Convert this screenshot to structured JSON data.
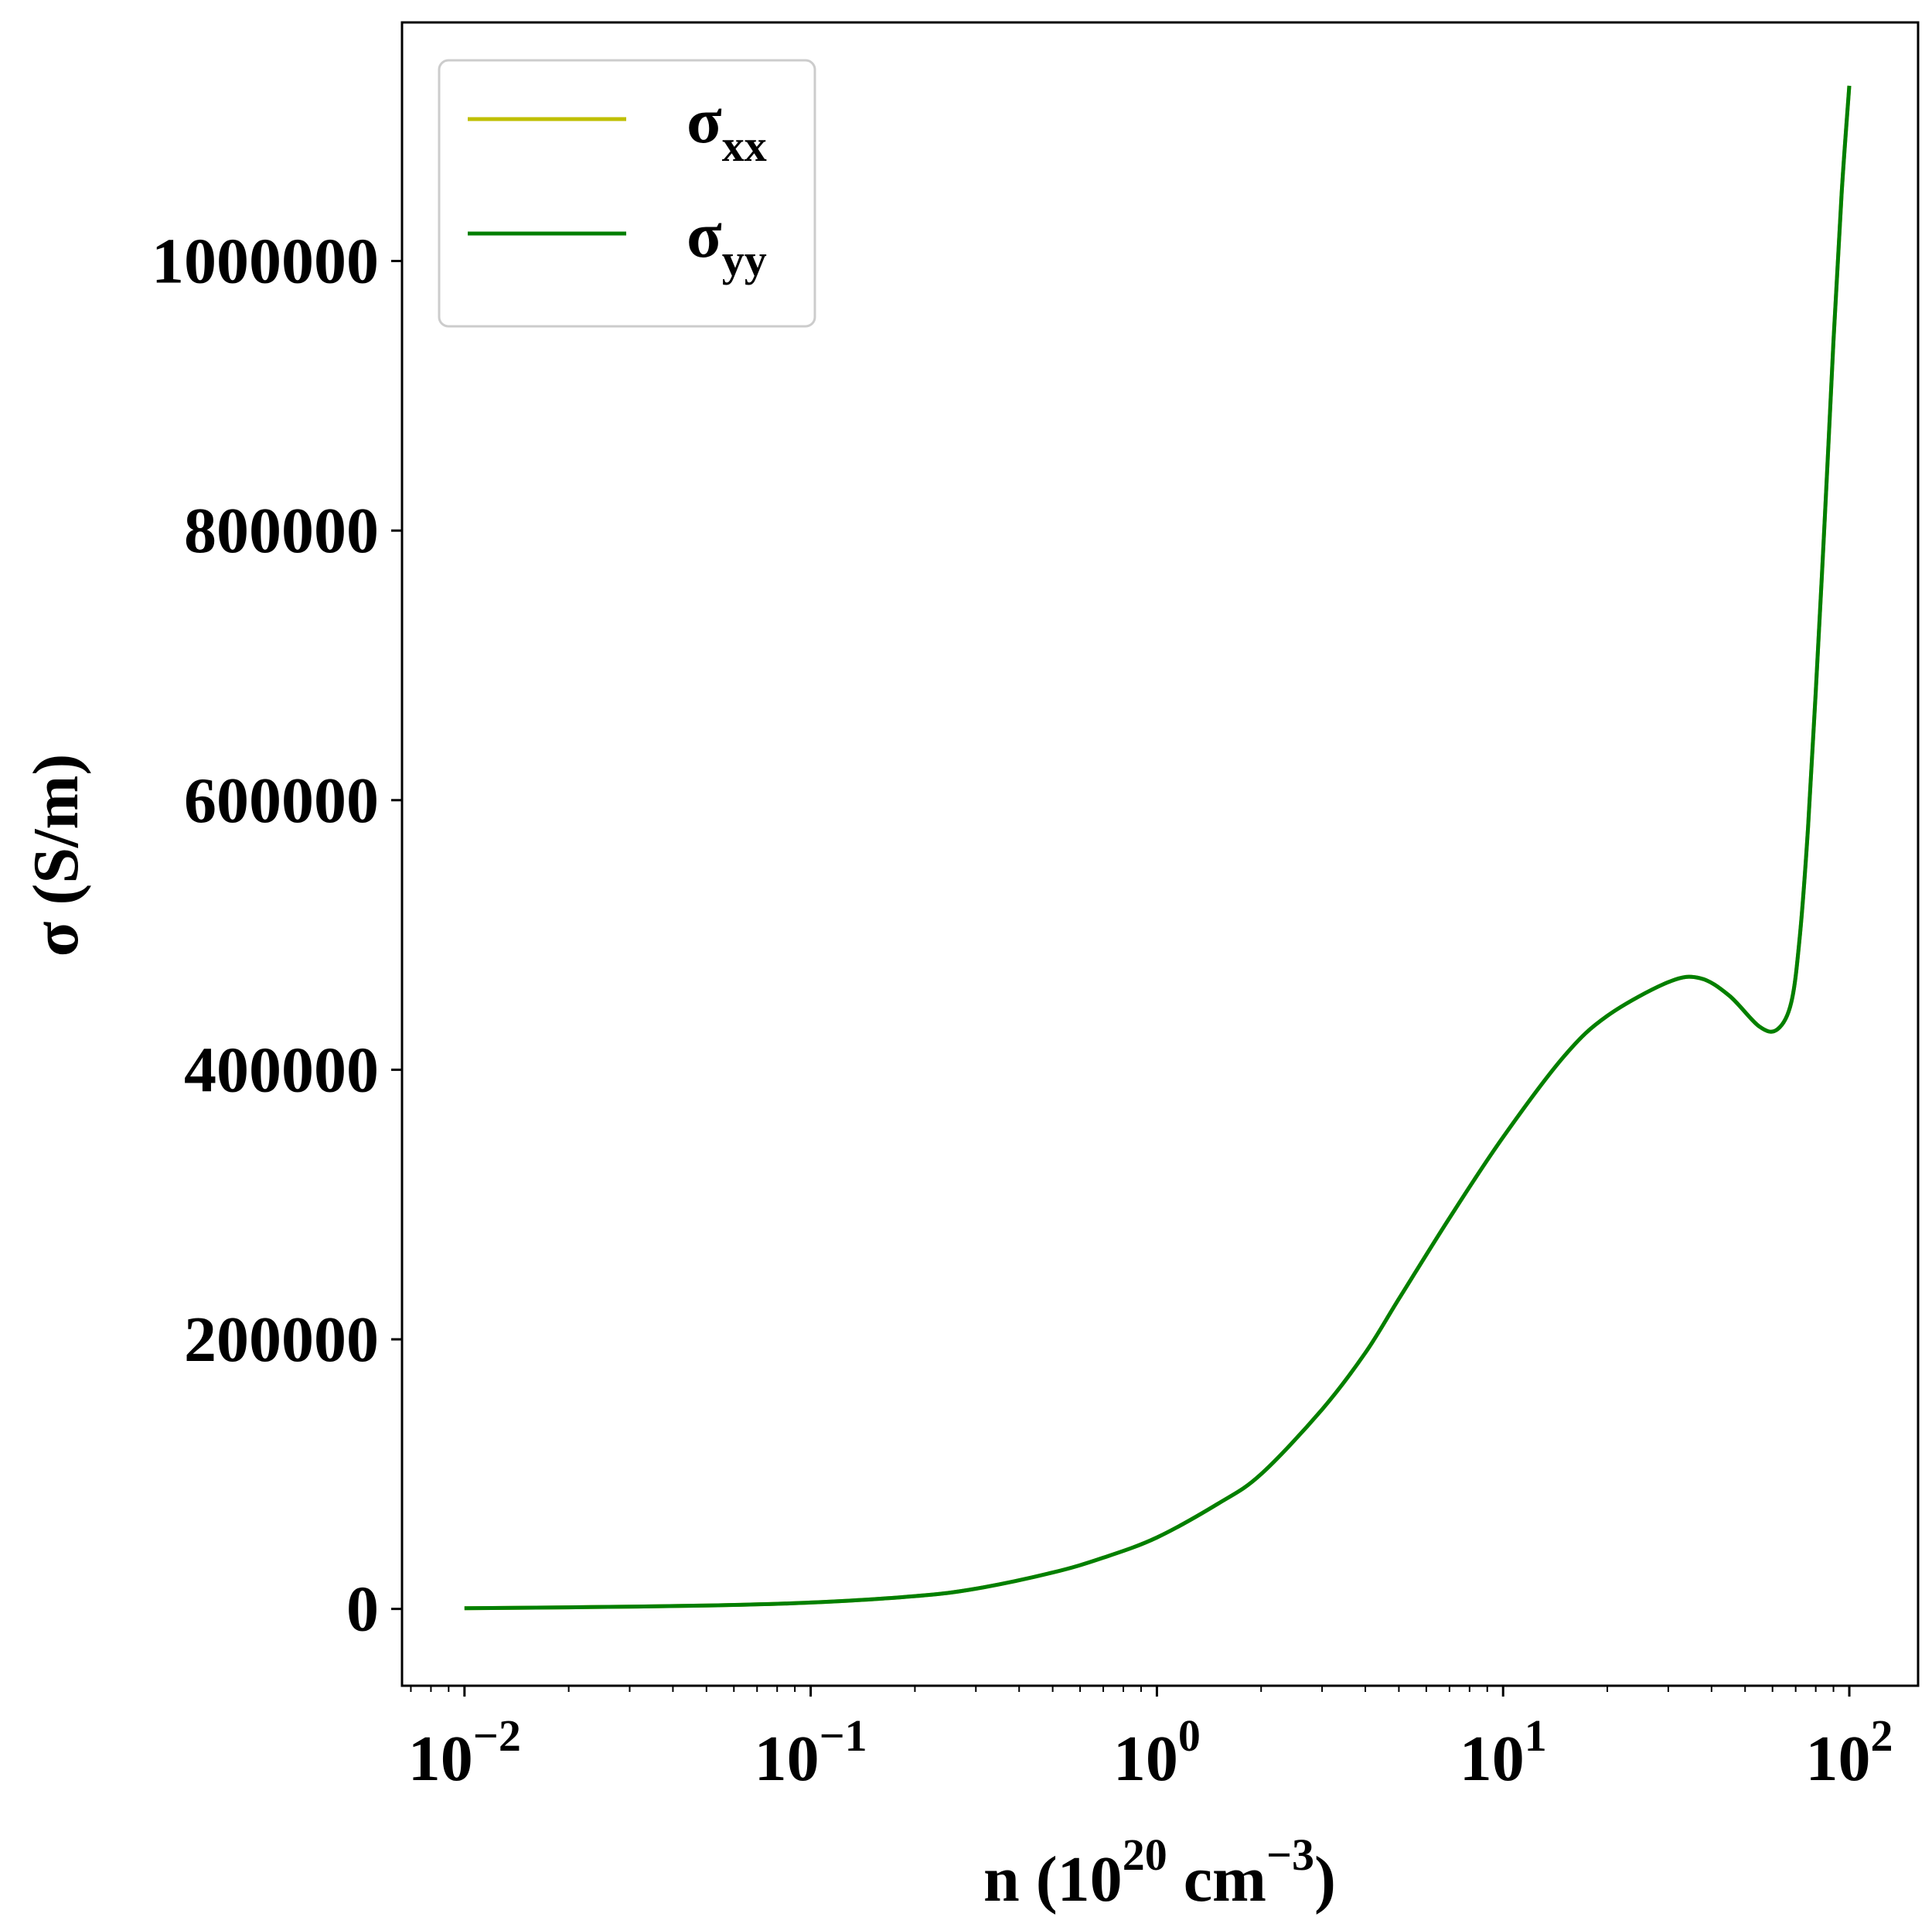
{
  "chart_data": {
    "type": "line",
    "title": "",
    "xlabel": {
      "base": "n (10",
      "exp1": "20",
      "mid": " cm",
      "exp2": "−3",
      "end": ")"
    },
    "ylabel": "σ (S/m)",
    "x_scale": "log",
    "xlim": [
      0.0066,
      158
    ],
    "ylim": [
      -57000,
      1177000
    ],
    "x_ticks": [
      {
        "value": 0.01,
        "base": "10",
        "exp": "−2"
      },
      {
        "value": 0.1,
        "base": "10",
        "exp": "−1"
      },
      {
        "value": 1,
        "base": "10",
        "exp": "0"
      },
      {
        "value": 10,
        "base": "10",
        "exp": "1"
      },
      {
        "value": 100,
        "base": "10",
        "exp": "2"
      }
    ],
    "y_ticks": [
      {
        "value": 0,
        "label": "0"
      },
      {
        "value": 200000,
        "label": "200000"
      },
      {
        "value": 400000,
        "label": "400000"
      },
      {
        "value": 600000,
        "label": "600000"
      },
      {
        "value": 800000,
        "label": "800000"
      },
      {
        "value": 1000000,
        "label": "1000000"
      }
    ],
    "grid": false,
    "legend_position": "top-left",
    "series": [
      {
        "name": {
          "base": "σ",
          "sub": "xx"
        },
        "color": "#bfbf00",
        "x": [
          0.01,
          0.02,
          0.05,
          0.1,
          0.2,
          0.3,
          0.5,
          0.7,
          1,
          1.5,
          2,
          3,
          4,
          5,
          7,
          10,
          15,
          20,
          30,
          37,
          45,
          55,
          62,
          68,
          72,
          76,
          80,
          85,
          90,
          95,
          100
        ],
        "y": [
          500,
          1200,
          2500,
          4700,
          9500,
          15000,
          27000,
          38000,
          53000,
          78000,
          100000,
          148000,
          190000,
          230000,
          290000,
          350000,
          410000,
          440000,
          465000,
          468000,
          455000,
          432000,
          430000,
          450000,
          500000,
          580000,
          680000,
          810000,
          940000,
          1050000,
          1130000
        ]
      },
      {
        "name": {
          "base": "σ",
          "sub": "yy"
        },
        "color": "#007f00",
        "x": [
          0.01,
          0.02,
          0.05,
          0.1,
          0.2,
          0.3,
          0.5,
          0.7,
          1,
          1.5,
          2,
          3,
          4,
          5,
          7,
          10,
          15,
          20,
          30,
          37,
          45,
          55,
          62,
          68,
          72,
          76,
          80,
          85,
          90,
          95,
          100
        ],
        "y": [
          500,
          1200,
          2500,
          4700,
          9500,
          15000,
          27000,
          38000,
          53000,
          78000,
          100000,
          148000,
          190000,
          230000,
          290000,
          350000,
          410000,
          440000,
          465000,
          468000,
          455000,
          432000,
          430000,
          450000,
          500000,
          580000,
          680000,
          810000,
          940000,
          1050000,
          1130000
        ]
      }
    ]
  }
}
